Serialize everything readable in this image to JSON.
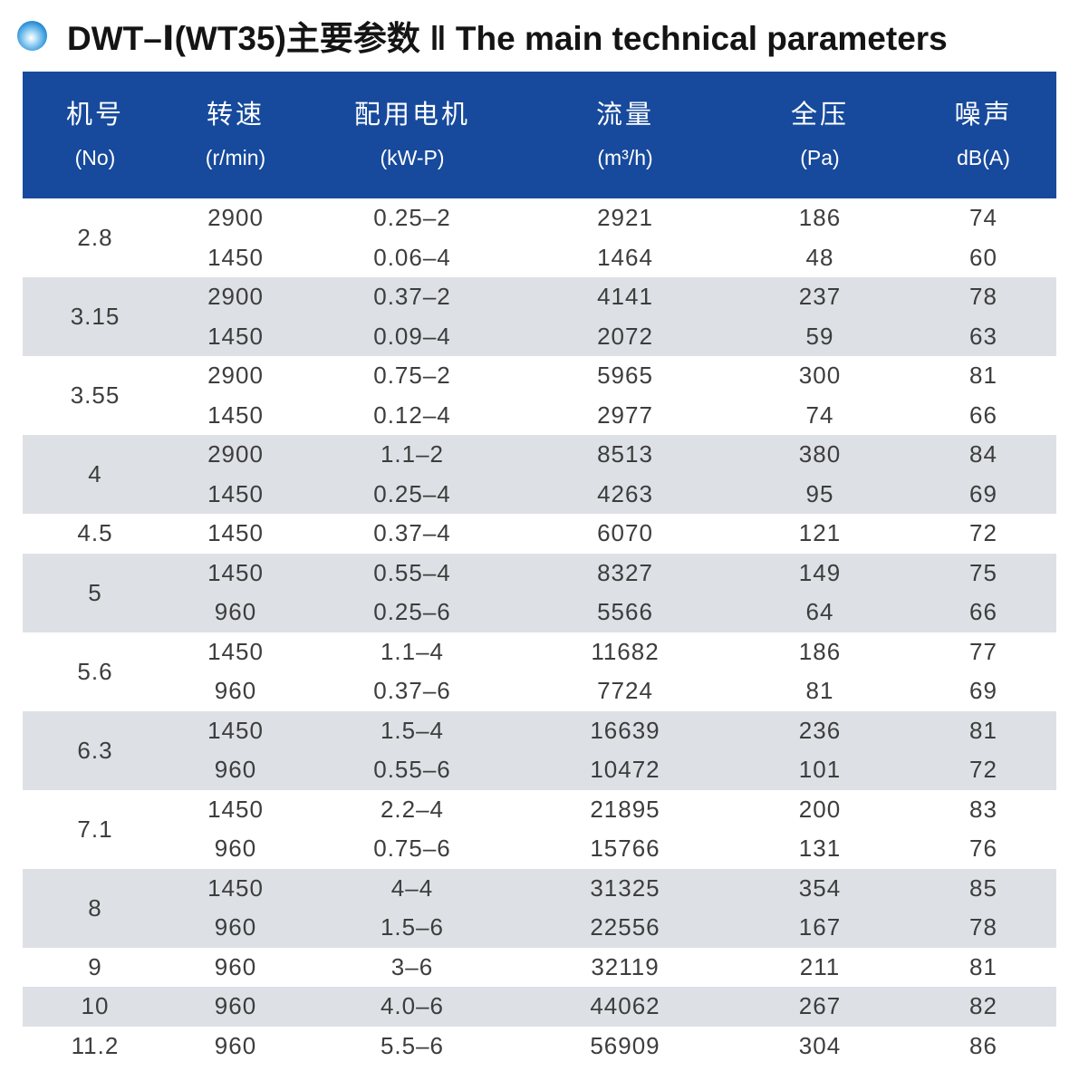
{
  "page": {
    "title": "DWT–Ⅰ(WT35)主要参数 ‖ The main technical parameters",
    "colors": {
      "header_bg": "#174a9c",
      "header_text": "#ffffff",
      "row_alt_bg": "#dde1e5",
      "body_text": "#3d3d3d",
      "bullet_blue": "#0c66ae"
    }
  },
  "table": {
    "columns": [
      {
        "zh": "机号",
        "unit": "(No)"
      },
      {
        "zh": "转速",
        "unit": "(r/min)"
      },
      {
        "zh": "配用电机",
        "unit": "(kW-P)"
      },
      {
        "zh": "流量",
        "unit": "(m³/h)"
      },
      {
        "zh": "全压",
        "unit": "(Pa)"
      },
      {
        "zh": "噪声",
        "unit": "dB(A)"
      }
    ],
    "groups": [
      {
        "no": "2.8",
        "rows": [
          [
            "2900",
            "0.25–2",
            "2921",
            "186",
            "74"
          ],
          [
            "1450",
            "0.06–4",
            "1464",
            "48",
            "60"
          ]
        ]
      },
      {
        "no": "3.15",
        "rows": [
          [
            "2900",
            "0.37–2",
            "4141",
            "237",
            "78"
          ],
          [
            "1450",
            "0.09–4",
            "2072",
            "59",
            "63"
          ]
        ]
      },
      {
        "no": "3.55",
        "rows": [
          [
            "2900",
            "0.75–2",
            "5965",
            "300",
            "81"
          ],
          [
            "1450",
            "0.12–4",
            "2977",
            "74",
            "66"
          ]
        ]
      },
      {
        "no": "4",
        "rows": [
          [
            "2900",
            "1.1–2",
            "8513",
            "380",
            "84"
          ],
          [
            "1450",
            "0.25–4",
            "4263",
            "95",
            "69"
          ]
        ]
      },
      {
        "no": "4.5",
        "rows": [
          [
            "1450",
            "0.37–4",
            "6070",
            "121",
            "72"
          ]
        ]
      },
      {
        "no": "5",
        "rows": [
          [
            "1450",
            "0.55–4",
            "8327",
            "149",
            "75"
          ],
          [
            "960",
            "0.25–6",
            "5566",
            "64",
            "66"
          ]
        ]
      },
      {
        "no": "5.6",
        "rows": [
          [
            "1450",
            "1.1–4",
            "11682",
            "186",
            "77"
          ],
          [
            "960",
            "0.37–6",
            "7724",
            "81",
            "69"
          ]
        ]
      },
      {
        "no": "6.3",
        "rows": [
          [
            "1450",
            "1.5–4",
            "16639",
            "236",
            "81"
          ],
          [
            "960",
            "0.55–6",
            "10472",
            "101",
            "72"
          ]
        ]
      },
      {
        "no": "7.1",
        "rows": [
          [
            "1450",
            "2.2–4",
            "21895",
            "200",
            "83"
          ],
          [
            "960",
            "0.75–6",
            "15766",
            "131",
            "76"
          ]
        ]
      },
      {
        "no": "8",
        "rows": [
          [
            "1450",
            "4–4",
            "31325",
            "354",
            "85"
          ],
          [
            "960",
            "1.5–6",
            "22556",
            "167",
            "78"
          ]
        ]
      },
      {
        "no": "9",
        "rows": [
          [
            "960",
            "3–6",
            "32119",
            "211",
            "81"
          ]
        ]
      },
      {
        "no": "10",
        "rows": [
          [
            "960",
            "4.0–6",
            "44062",
            "267",
            "82"
          ]
        ]
      },
      {
        "no": "11.2",
        "rows": [
          [
            "960",
            "5.5–6",
            "56909",
            "304",
            "86"
          ]
        ]
      }
    ]
  }
}
